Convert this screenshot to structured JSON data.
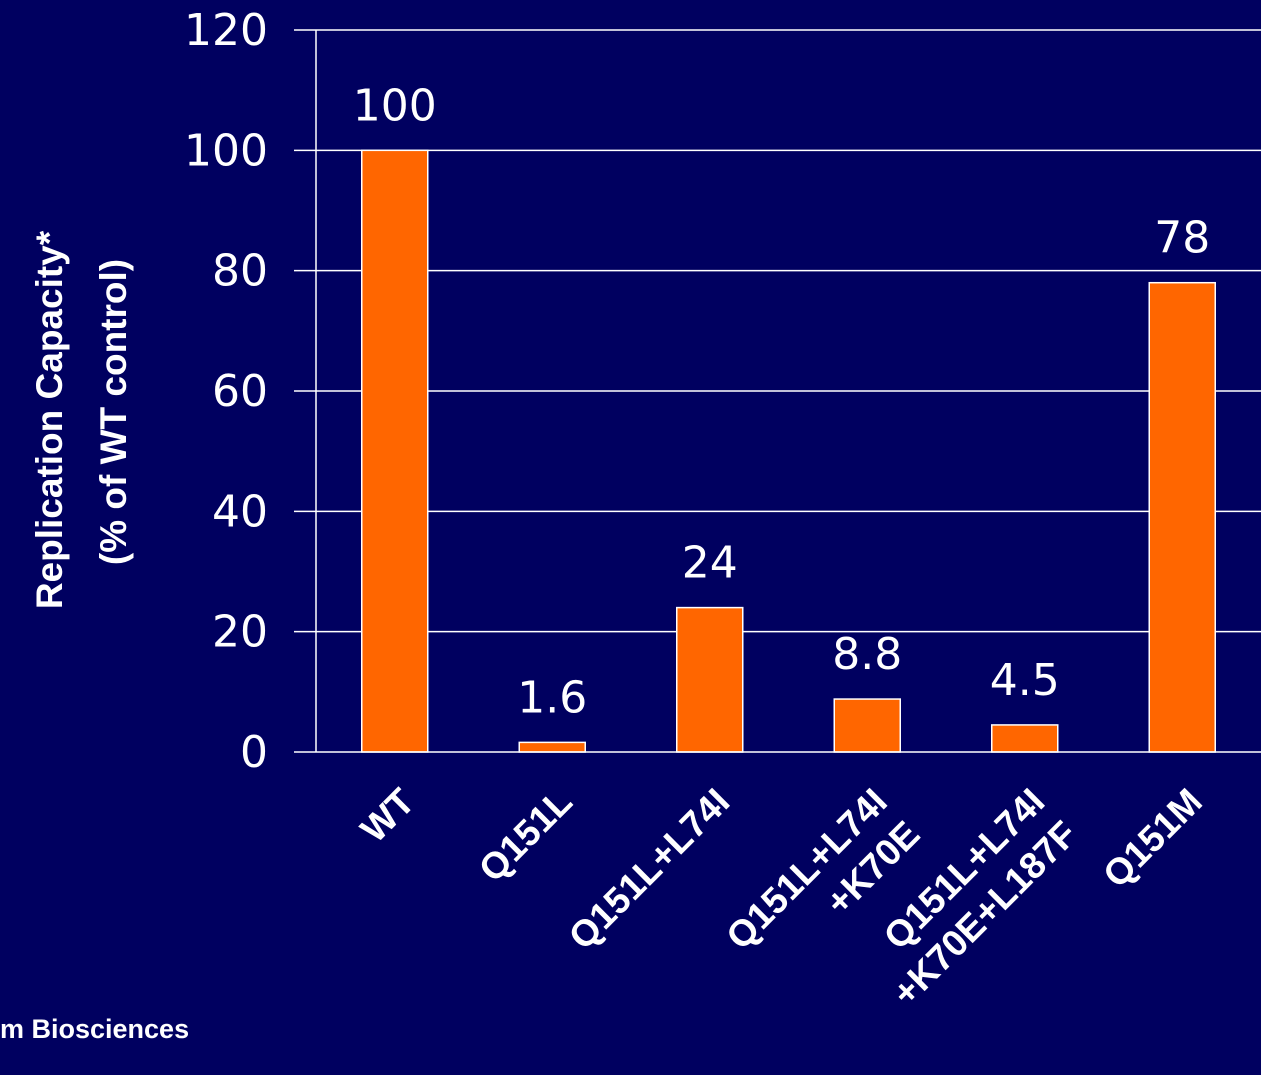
{
  "footer_note": "m Biosciences",
  "colors": {
    "background": "#000060",
    "bar": "#ff6600",
    "text": "#ffffff",
    "grid": "#ffffff"
  },
  "chart_data": {
    "type": "bar",
    "categories": [
      [
        "WT"
      ],
      [
        "Q151L"
      ],
      [
        "Q151L+L74I"
      ],
      [
        "Q151L+L74I",
        "+K70E"
      ],
      [
        "Q151L+L74I",
        "+K70E+L187F"
      ],
      [
        "Q151M"
      ]
    ],
    "values": [
      100,
      1.6,
      24,
      8.8,
      4.5,
      78
    ],
    "data_labels": [
      "100",
      "1.6",
      "24",
      "8.8",
      "4.5",
      "78"
    ],
    "ylabel": [
      "Replication Capacity*",
      "(% of WT control)"
    ],
    "xlabel": "",
    "ylim": [
      0,
      120
    ],
    "yticks": [
      0,
      20,
      40,
      60,
      80,
      100,
      120
    ],
    "grid": true
  }
}
